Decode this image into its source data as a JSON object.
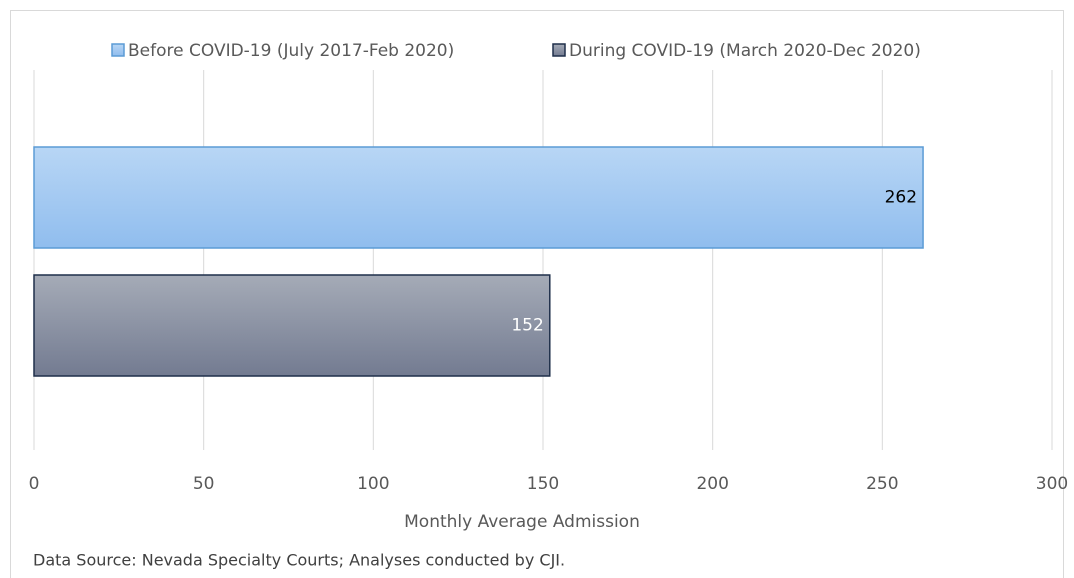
{
  "chart_data": {
    "type": "bar",
    "orientation": "horizontal",
    "series": [
      {
        "name": "Before COVID-19 (July 2017-Feb 2020)",
        "color": "#a7cbf2",
        "edge_color": "#5b9bd5",
        "label_color": "#000000",
        "values": [
          262
        ]
      },
      {
        "name": "During COVID-19 (March 2020-Dec 2020)",
        "color": "#8d94a6",
        "edge_color": "#1f2f4a",
        "label_color": "#ffffff",
        "values": [
          152
        ]
      }
    ],
    "xlim": [
      0,
      300
    ],
    "xticks": [
      0,
      50,
      100,
      150,
      200,
      250,
      300
    ],
    "xlabel": "Monthly Average Admission",
    "grid": true,
    "legend": "top",
    "note": "Data Source: Nevada Specialty Courts; Analyses conducted by CJI."
  }
}
